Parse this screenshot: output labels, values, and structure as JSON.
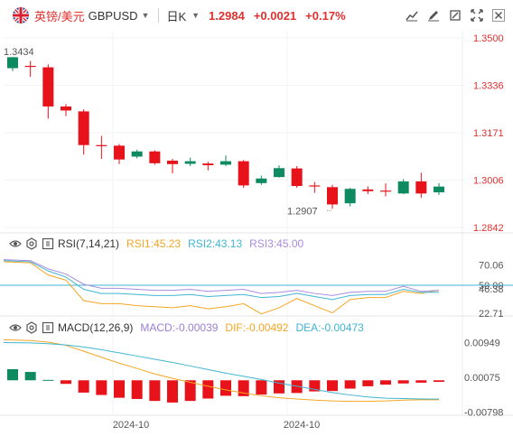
{
  "header": {
    "symbol_cn": "英镑/美元",
    "symbol_en": "GBPUSD",
    "period": "日K",
    "price": "1.2984",
    "change": "+0.0021",
    "change_pct": "+0.17%"
  },
  "toolbar": {
    "icons": [
      "chart-type-icon",
      "draw-pen-icon",
      "edit-icon",
      "fullscreen-icon",
      "close-icon"
    ]
  },
  "colors": {
    "up": "#0e8a60",
    "down": "#e8121b",
    "rsi1": "#f5a623",
    "rsi2": "#40b6d1",
    "rsi3": "#a98ce0",
    "dif": "#f5a623",
    "dea": "#40b6d1",
    "price_axis": "#e0312f"
  },
  "chart_data": [
    {
      "type": "candlestick",
      "title": "",
      "y_axis_labels": [
        "1.3500",
        "1.3336",
        "1.3171",
        "1.3006",
        "1.2842"
      ],
      "ylim": [
        1.2842,
        1.35
      ],
      "annotations": [
        {
          "text": "1.3434",
          "note": "max"
        },
        {
          "text": "1.2907",
          "note": "min"
        }
      ],
      "candles": [
        {
          "o": 1.3395,
          "c": 1.3433,
          "h": 1.3434,
          "l": 1.3385
        },
        {
          "o": 1.3403,
          "c": 1.34,
          "h": 1.342,
          "l": 1.3365
        },
        {
          "o": 1.3398,
          "c": 1.3262,
          "h": 1.3408,
          "l": 1.322
        },
        {
          "o": 1.3262,
          "c": 1.3248,
          "h": 1.327,
          "l": 1.3228
        },
        {
          "o": 1.3245,
          "c": 1.3128,
          "h": 1.3252,
          "l": 1.3095
        },
        {
          "o": 1.3128,
          "c": 1.3126,
          "h": 1.316,
          "l": 1.308
        },
        {
          "o": 1.3126,
          "c": 1.3078,
          "h": 1.3132,
          "l": 1.3062
        },
        {
          "o": 1.3088,
          "c": 1.3106,
          "h": 1.3112,
          "l": 1.3082
        },
        {
          "o": 1.3106,
          "c": 1.3065,
          "h": 1.311,
          "l": 1.306
        },
        {
          "o": 1.3074,
          "c": 1.3062,
          "h": 1.308,
          "l": 1.303
        },
        {
          "o": 1.3063,
          "c": 1.3072,
          "h": 1.3084,
          "l": 1.3055
        },
        {
          "o": 1.3064,
          "c": 1.3058,
          "h": 1.307,
          "l": 1.304
        },
        {
          "o": 1.306,
          "c": 1.3072,
          "h": 1.3092,
          "l": 1.3055
        },
        {
          "o": 1.3072,
          "c": 1.2988,
          "h": 1.3076,
          "l": 1.298
        },
        {
          "o": 1.2996,
          "c": 1.3012,
          "h": 1.3022,
          "l": 1.299
        },
        {
          "o": 1.3017,
          "c": 1.3048,
          "h": 1.3058,
          "l": 1.3015
        },
        {
          "o": 1.3047,
          "c": 1.2986,
          "h": 1.3055,
          "l": 1.298
        },
        {
          "o": 1.2988,
          "c": 1.2986,
          "h": 1.3,
          "l": 1.2962
        },
        {
          "o": 1.2982,
          "c": 1.2922,
          "h": 1.299,
          "l": 1.2907
        },
        {
          "o": 1.2926,
          "c": 1.2976,
          "h": 1.298,
          "l": 1.2915
        },
        {
          "o": 1.2974,
          "c": 1.2968,
          "h": 1.2985,
          "l": 1.2958
        },
        {
          "o": 1.297,
          "c": 1.2967,
          "h": 1.2995,
          "l": 1.295
        },
        {
          "o": 1.296,
          "c": 1.3002,
          "h": 1.301,
          "l": 1.2958
        },
        {
          "o": 1.3002,
          "c": 1.296,
          "h": 1.3032,
          "l": 1.2945
        },
        {
          "o": 1.2964,
          "c": 1.2984,
          "h": 1.2996,
          "l": 1.2955
        }
      ]
    },
    {
      "type": "line",
      "name": "RSI(7,14,21)",
      "legend": [
        {
          "label": "RSI1:45.23",
          "color_key": "rsi1"
        },
        {
          "label": "RSI2:43.13",
          "color_key": "rsi2"
        },
        {
          "label": "RSI3:45.00",
          "color_key": "rsi3"
        }
      ],
      "y_axis_labels": [
        "70.06",
        "50.00",
        "46.38",
        "22.71"
      ],
      "ylim": [
        20,
        80
      ],
      "reference_line": 50,
      "series": [
        {
          "name": "RSI1",
          "values": [
            73,
            72,
            60,
            55,
            35,
            32,
            32,
            30,
            29,
            28,
            30,
            27,
            29,
            32,
            22,
            28,
            37,
            30,
            23,
            36,
            38,
            38,
            44,
            42,
            45.23
          ]
        },
        {
          "name": "RSI2",
          "values": [
            74,
            73,
            64,
            58,
            46,
            42,
            42,
            41,
            40,
            40,
            41,
            39,
            40,
            41,
            38,
            39,
            42,
            39,
            36,
            40,
            41,
            41,
            46,
            43,
            43.13
          ]
        },
        {
          "name": "RSI3",
          "values": [
            75,
            74,
            66,
            61,
            51,
            47,
            47,
            46,
            45,
            45,
            46,
            44,
            45,
            46,
            42,
            43,
            45,
            42,
            40,
            43,
            44,
            44,
            49,
            44,
            45.0
          ]
        }
      ]
    },
    {
      "type": "bar",
      "name": "MACD(12,26,9)",
      "legend": [
        {
          "label": "MACD:-0.00039",
          "color_key": "down"
        },
        {
          "label": "DIF:-0.00492",
          "color_key": "dif"
        },
        {
          "label": "DEA:-0.00473",
          "color_key": "dea"
        }
      ],
      "y_axis_labels": [
        "0.00949",
        "0.00075",
        "-0.00798"
      ],
      "ylim": [
        -0.0088,
        0.0112
      ],
      "x_tick_labels": [
        "2024-10",
        "2024-10"
      ],
      "macd": [
        0.0028,
        0.0021,
        0.0001,
        -0.0009,
        -0.0031,
        -0.0037,
        -0.0044,
        -0.0047,
        -0.0052,
        -0.0056,
        -0.0052,
        -0.0046,
        -0.0039,
        -0.004,
        -0.0036,
        -0.0033,
        -0.0032,
        -0.0028,
        -0.0027,
        -0.0021,
        -0.0015,
        -0.0011,
        -0.0008,
        -0.0006,
        -0.00039
      ],
      "dif": [
        0.0102,
        0.01,
        0.0096,
        0.0088,
        0.0073,
        0.0058,
        0.0043,
        0.003,
        0.0016,
        0.0005,
        -0.0005,
        -0.0015,
        -0.0024,
        -0.0032,
        -0.0039,
        -0.0044,
        -0.0047,
        -0.005,
        -0.0052,
        -0.0053,
        -0.0053,
        -0.0052,
        -0.005,
        -0.0049,
        -0.00492
      ],
      "dea": [
        0.0095,
        0.0094,
        0.0092,
        0.0089,
        0.0084,
        0.0077,
        0.0069,
        0.0061,
        0.0053,
        0.0045,
        0.0036,
        0.0027,
        0.0018,
        0.001,
        0.0002,
        -0.0007,
        -0.0015,
        -0.0023,
        -0.0031,
        -0.0037,
        -0.0042,
        -0.0045,
        -0.0046,
        -0.0047,
        -0.00473
      ]
    }
  ]
}
